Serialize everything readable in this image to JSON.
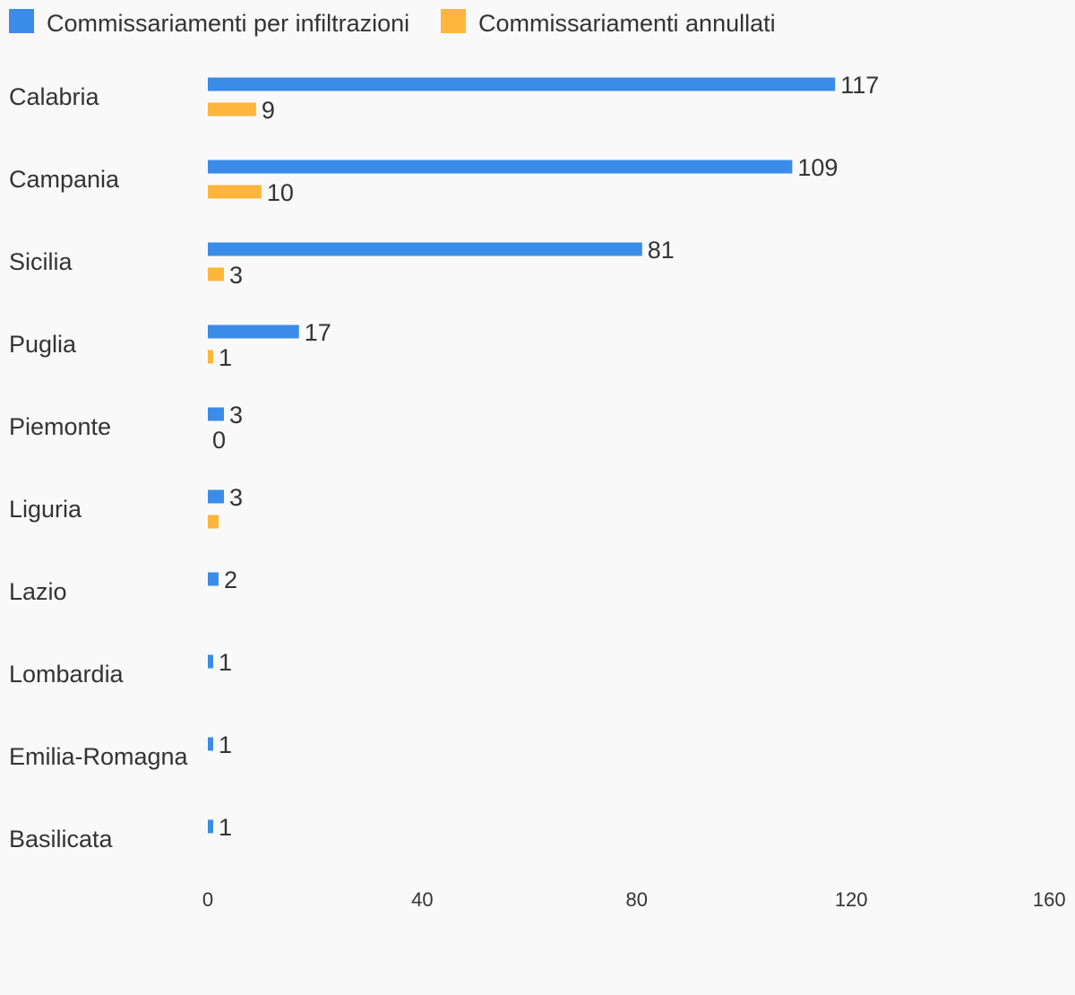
{
  "colors": {
    "background": "#f9f9f9",
    "series1": "#3a8ce8",
    "series2": "#ffb53b",
    "text": "#333333"
  },
  "chart_data": {
    "type": "bar",
    "orientation": "horizontal",
    "title": "",
    "xlabel": "",
    "ylabel": "",
    "xlim": [
      0,
      160
    ],
    "ticks": [
      "0",
      "40",
      "80",
      "120",
      "160"
    ],
    "tick_values": [
      0,
      40,
      80,
      120,
      160
    ],
    "grid": false,
    "legend_position": "top-left",
    "categories": [
      "Calabria",
      "Campania",
      "Sicilia",
      "Puglia",
      "Piemonte",
      "Liguria",
      "Lazio",
      "Lombardia",
      "Emilia-Romagna",
      "Basilicata"
    ],
    "series": [
      {
        "name": "Commissariamenti per infiltrazioni",
        "values": [
          117,
          109,
          81,
          17,
          3,
          3,
          2,
          1,
          1,
          1
        ],
        "labels": [
          "117",
          "109",
          "81",
          "17",
          "3",
          "3",
          "2",
          "1",
          "1",
          "1"
        ]
      },
      {
        "name": "Commissariamenti annullati",
        "values": [
          9,
          10,
          3,
          1,
          0,
          2,
          null,
          null,
          null,
          null
        ],
        "labels": [
          "9",
          "10",
          "3",
          "1",
          "0",
          "",
          "",
          "",
          "",
          ""
        ]
      }
    ]
  }
}
